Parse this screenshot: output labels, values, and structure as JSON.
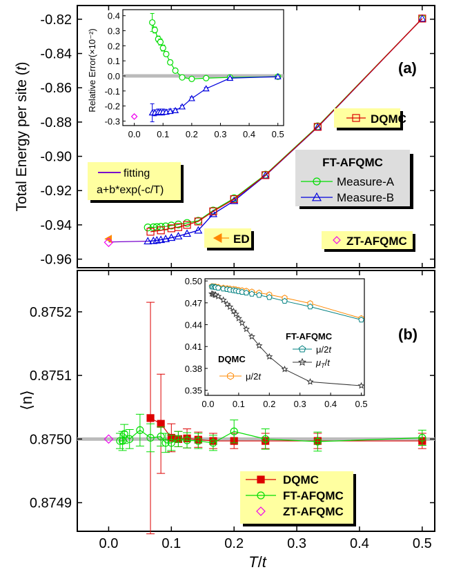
{
  "chart_data": [
    {
      "panel": "(a)",
      "type": "line",
      "xlim": [
        -0.05,
        0.52
      ],
      "ylim": [
        -0.965,
        -0.812
      ],
      "ylabel": "Total Energy per site (",
      "ylabel_unit": "t",
      "ylabel_close": ")",
      "xticks": [
        0.0,
        0.1,
        0.2,
        0.3,
        0.4,
        0.5
      ],
      "yticks": [
        -0.96,
        -0.94,
        -0.92,
        -0.9,
        -0.88,
        -0.86,
        -0.84,
        -0.82
      ],
      "ytick_labels": [
        "-0.96",
        "-0.94",
        "-0.92",
        "-0.90",
        "-0.88",
        "-0.86",
        "-0.84",
        "-0.82"
      ],
      "series": [
        {
          "name": "Measure-A",
          "color": "#00dd00",
          "marker": "circle",
          "x": [
            0.0625,
            0.0714,
            0.0769,
            0.0833,
            0.0909,
            0.1,
            0.1111,
            0.125,
            0.1429,
            0.1667,
            0.2,
            0.25,
            0.3333,
            0.5
          ],
          "y": [
            -0.9415,
            -0.9414,
            -0.9413,
            -0.9411,
            -0.9409,
            -0.9404,
            -0.9398,
            -0.9389,
            -0.9376,
            -0.9316,
            -0.9245,
            -0.9107,
            -0.8825,
            -0.8196
          ]
        },
        {
          "name": "Measure-B",
          "color": "#0000dd",
          "marker": "triangle",
          "x": [
            0.0625,
            0.0714,
            0.0769,
            0.0833,
            0.0909,
            0.1,
            0.1111,
            0.125,
            0.1429,
            0.1667,
            0.2,
            0.25,
            0.3333,
            0.5
          ],
          "y": [
            -0.9495,
            -0.9493,
            -0.949,
            -0.9487,
            -0.9482,
            -0.9475,
            -0.9466,
            -0.9451,
            -0.9432,
            -0.9336,
            -0.926,
            -0.9112,
            -0.883,
            -0.8196
          ]
        },
        {
          "name": "DQMC",
          "color": "#dd0000",
          "marker": "square",
          "x": [
            0.0667,
            0.0833,
            0.1,
            0.1111,
            0.125,
            0.1429,
            0.1667,
            0.2,
            0.25,
            0.3333,
            0.5
          ],
          "y": [
            -0.944,
            -0.9432,
            -0.942,
            -0.9413,
            -0.94,
            -0.938,
            -0.9321,
            -0.925,
            -0.911,
            -0.8828,
            -0.8196
          ]
        },
        {
          "name": "ED",
          "color": "#ff8800",
          "marker": "left-triangle",
          "x": [
            0.0
          ],
          "y": [
            -0.9482
          ]
        },
        {
          "name": "ZT-AFQMC",
          "color": "#ee00ee",
          "marker": "diamond",
          "x": [
            0.0
          ],
          "y": [
            -0.9502
          ]
        }
      ],
      "fit_label": "fitting",
      "fit_formula": "a+b*exp(-c/T)",
      "legend": {
        "dqmc": "DQMC",
        "ft_title": "FT-AFQMC",
        "measure_a": "Measure-A",
        "measure_b": "Measure-B",
        "ed": "ED",
        "zt": "ZT-AFQMC"
      },
      "inset": {
        "ylabel": "Relative Error(×10⁻²)",
        "ylim": [
          -0.33,
          0.44
        ],
        "xlim": [
          -0.04,
          0.52
        ],
        "xticks": [
          0.0,
          0.1,
          0.2,
          0.3,
          0.4,
          0.5
        ],
        "yticks": [
          -0.3,
          -0.2,
          -0.1,
          0.0,
          0.1,
          0.2,
          0.3,
          0.4
        ],
        "series": [
          {
            "name": "Measure-A",
            "color": "#00dd00",
            "x": [
              0.0625,
              0.0714,
              0.0833,
              0.0909,
              0.1,
              0.1111,
              0.125,
              0.1429,
              0.1667,
              0.2,
              0.25,
              0.3333,
              0.5
            ],
            "y": [
              0.355,
              0.305,
              0.245,
              0.225,
              0.185,
              0.145,
              0.09,
              0.035,
              -0.01,
              -0.02,
              -0.015,
              -0.01,
              -0.005
            ],
            "err": [
              0.06,
              0.02,
              0.02,
              0.02,
              0.02,
              0.015,
              0.015,
              0.012,
              0.01,
              0.01,
              0.008,
              0.006,
              0.005
            ]
          },
          {
            "name": "Measure-B",
            "color": "#0000dd",
            "x": [
              0.0625,
              0.0714,
              0.0833,
              0.0909,
              0.1,
              0.1111,
              0.125,
              0.1429,
              0.1667,
              0.2,
              0.25,
              0.3333,
              0.5
            ],
            "y": [
              -0.245,
              -0.245,
              -0.24,
              -0.24,
              -0.24,
              -0.24,
              -0.235,
              -0.23,
              -0.205,
              -0.15,
              -0.085,
              -0.015,
              -0.005
            ],
            "err": [
              0.06,
              0.02,
              0.02,
              0.02,
              0.02,
              0.015,
              0.015,
              0.012,
              0.01,
              0.01,
              0.008,
              0.006,
              0.005
            ]
          },
          {
            "name": "ZT-AFQMC",
            "color": "#ee00ee",
            "x": [
              0.0
            ],
            "y": [
              -0.27
            ],
            "err": [
              0.008
            ]
          }
        ]
      }
    },
    {
      "panel": "(b)",
      "type": "scatter",
      "xlabel": "T/t",
      "ylabel": "⟨n⟩",
      "xlim": [
        -0.05,
        0.52
      ],
      "ylim": [
        0.874855,
        0.875265
      ],
      "xticks": [
        0.0,
        0.1,
        0.2,
        0.3,
        0.4,
        0.5
      ],
      "xtick_labels": [
        "0.0",
        "0.1",
        "0.2",
        "0.3",
        "0.4",
        "0.5"
      ],
      "yticks": [
        0.8749,
        0.875,
        0.8751,
        0.8752
      ],
      "ytick_labels": [
        "0.8749",
        "0.8750",
        "0.8751",
        "0.8752"
      ],
      "series": [
        {
          "name": "DQMC",
          "color": "#dd0000",
          "marker": "filled-square",
          "x": [
            0.0667,
            0.0833,
            0.1,
            0.1111,
            0.125,
            0.1429,
            0.1667,
            0.2,
            0.25,
            0.3333,
            0.5
          ],
          "y": [
            0.875033,
            0.875024,
            0.875002,
            0.875,
            0.875001,
            0.874999,
            0.874997,
            0.874997,
            0.874997,
            0.874997,
            0.874997
          ],
          "err": [
            0.000182,
            7.8e-05,
            2.2e-05,
            1.2e-05,
            1.5e-05,
            1.2e-05,
            1.2e-05,
            1.2e-05,
            1.2e-05,
            1.2e-05,
            1.2e-05
          ]
        },
        {
          "name": "FT-AFQMC",
          "color": "#00dd00",
          "marker": "circle",
          "x": [
            0.0182,
            0.0222,
            0.025,
            0.0333,
            0.05,
            0.0667,
            0.0833,
            0.0909,
            0.1,
            0.1111,
            0.125,
            0.1429,
            0.1667,
            0.2,
            0.25,
            0.3333,
            0.5
          ],
          "y": [
            0.874997,
            0.874997,
            0.875008,
            0.875,
            0.875014,
            0.875002,
            0.875004,
            0.874994,
            0.874994,
            0.875,
            0.874998,
            0.874997,
            0.874994,
            0.875012,
            0.875,
            0.874996,
            0.875002
          ],
          "err": [
            1.2e-05,
            1.5e-05,
            1.5e-05,
            1.5e-05,
            2.5e-05,
            2.2e-05,
            1.5e-05,
            1.5e-05,
            1.2e-05,
            1.2e-05,
            1.2e-05,
            1.2e-05,
            1.2e-05,
            1.8e-05,
            1.6e-05,
            1.5e-05,
            1.2e-05
          ]
        },
        {
          "name": "ZT-AFQMC",
          "color": "#ee00ee",
          "marker": "diamond",
          "x": [
            0.0
          ],
          "y": [
            0.875
          ]
        }
      ],
      "legend": {
        "dqmc": "DQMC",
        "ft": "FT-AFQMC",
        "zt": "ZT-AFQMC"
      },
      "inset": {
        "xlim": [
          -0.01,
          0.51
        ],
        "ylim": [
          0.343,
          0.503
        ],
        "xticks": [
          0.0,
          0.1,
          0.2,
          0.3,
          0.4,
          0.5
        ],
        "yticks": [
          0.35,
          0.38,
          0.41,
          0.44,
          0.47,
          0.5
        ],
        "ytick_labels": [
          "0.35",
          "0.38",
          "0.41",
          "0.44",
          "0.47",
          "0.50"
        ],
        "series": [
          {
            "name": "DQMC μ/2t",
            "color": "#ff8800",
            "marker": "hexagon",
            "x": [
              0.0125,
              0.0167,
              0.0222,
              0.025,
              0.0333,
              0.05,
              0.0625,
              0.0714,
              0.0833,
              0.0909,
              0.1,
              0.1111,
              0.125,
              0.1429,
              0.1667,
              0.2,
              0.25,
              0.3333,
              0.5
            ],
            "y": [
              0.4925,
              0.4924,
              0.4922,
              0.492,
              0.4915,
              0.4905,
              0.4898,
              0.4893,
              0.4888,
              0.4883,
              0.4876,
              0.487,
              0.4863,
              0.4852,
              0.4838,
              0.4812,
              0.4768,
              0.4692,
              0.4487
            ]
          },
          {
            "name": "FT-AFQMC μ/2t",
            "color": "#008080",
            "marker": "pentagon",
            "x": [
              0.0125,
              0.0167,
              0.0222,
              0.025,
              0.0333,
              0.05,
              0.0625,
              0.0714,
              0.0833,
              0.0909,
              0.1,
              0.1111,
              0.125,
              0.1429,
              0.1667,
              0.2,
              0.25,
              0.3333,
              0.5
            ],
            "y": [
              0.4921,
              0.4919,
              0.4916,
              0.4912,
              0.4905,
              0.4893,
              0.4885,
              0.4878,
              0.487,
              0.4865,
              0.4856,
              0.4848,
              0.4837,
              0.4822,
              0.4805,
              0.4776,
              0.4724,
              0.4647,
              0.4467
            ]
          },
          {
            "name": "FT-AFQMC μT/t",
            "color": "#333333",
            "marker": "star",
            "x": [
              0.0125,
              0.0167,
              0.0222,
              0.025,
              0.0333,
              0.05,
              0.0625,
              0.0714,
              0.0833,
              0.0909,
              0.1,
              0.1111,
              0.125,
              0.1429,
              0.1667,
              0.2,
              0.25,
              0.3333,
              0.5
            ],
            "y": [
              0.4823,
              0.4818,
              0.481,
              0.4806,
              0.4788,
              0.4738,
              0.4683,
              0.4643,
              0.4584,
              0.4545,
              0.4486,
              0.4423,
              0.4339,
              0.4236,
              0.4112,
              0.3961,
              0.3788,
              0.3616,
              0.3562
            ]
          }
        ],
        "legend": {
          "dqmc_title": "DQMC",
          "dqmc_item": "μ/2",
          "ft_title": "FT-AFQMC",
          "ft_item1": "μ/2",
          "ft_item2": "μ",
          "ft_item2_sub": "T",
          "ft_item2_tail": "/",
          "t": "t"
        }
      }
    }
  ]
}
